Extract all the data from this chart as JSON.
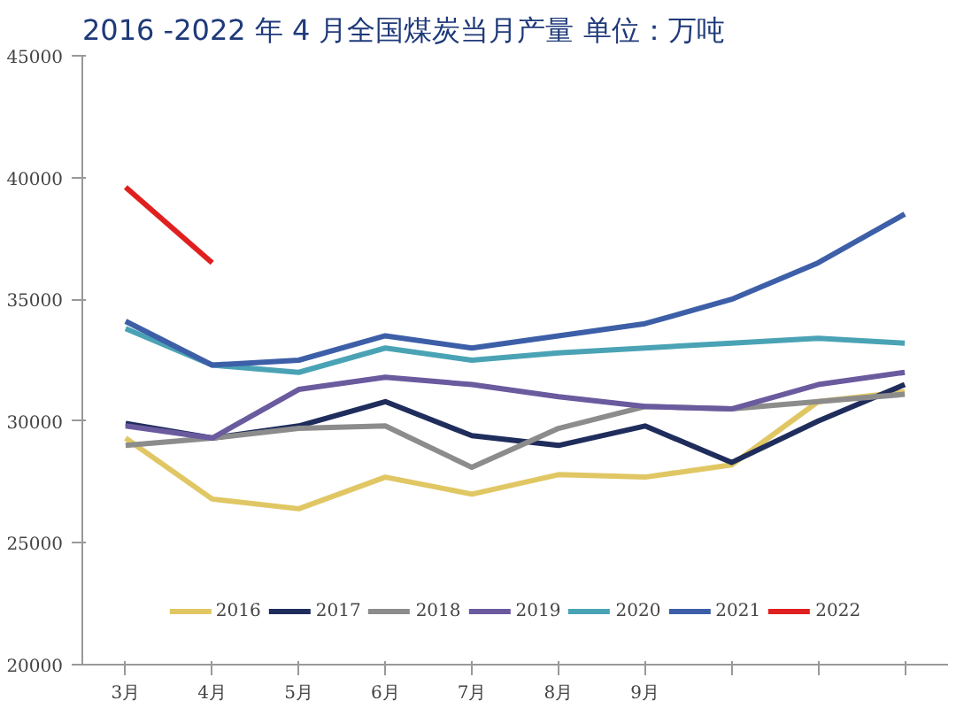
{
  "chart_data": {
    "type": "line",
    "title": "2016 -2022 年 4 月全国煤炭当月产量  单位：万吨",
    "categories": [
      "3月",
      "4月",
      "5月",
      "6月",
      "7月",
      "8月",
      "9月",
      null,
      null,
      null
    ],
    "series": [
      {
        "name": "2016",
        "color": "#e0c764",
        "values": [
          29300,
          26800,
          26400,
          27700,
          27000,
          27800,
          27700,
          28200,
          30800,
          31200
        ]
      },
      {
        "name": "2017",
        "color": "#1f2d5c",
        "values": [
          29900,
          29300,
          29800,
          30800,
          29400,
          29000,
          29800,
          28300,
          30000,
          31500
        ]
      },
      {
        "name": "2018",
        "color": "#8c8c8c",
        "values": [
          29000,
          29300,
          29700,
          29800,
          28100,
          29700,
          30600,
          30500,
          30800,
          31100
        ]
      },
      {
        "name": "2019",
        "color": "#6a5a9e",
        "values": [
          29800,
          29300,
          31300,
          31800,
          31500,
          31000,
          30600,
          30500,
          31500,
          32000
        ]
      },
      {
        "name": "2020",
        "color": "#4aa3b5",
        "values": [
          33800,
          32300,
          32000,
          33000,
          32500,
          32800,
          33000,
          33200,
          33400,
          33200
        ]
      },
      {
        "name": "2021",
        "color": "#3d5fa8",
        "values": [
          34100,
          32300,
          32500,
          33500,
          33000,
          33500,
          34000,
          35000,
          36500,
          38500
        ]
      },
      {
        "name": "2022",
        "color": "#e02020",
        "values": [
          39600,
          36500,
          null,
          null,
          null,
          null,
          null,
          null,
          null,
          null
        ]
      }
    ],
    "ylim": [
      20000,
      45000
    ],
    "yticks": [
      20000,
      25000,
      30000,
      35000,
      40000,
      45000
    ],
    "grid": false,
    "legend": "bottom",
    "marker": "none",
    "line_style": "solid"
  }
}
